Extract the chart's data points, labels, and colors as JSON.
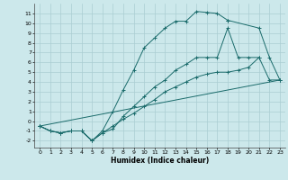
{
  "xlabel": "Humidex (Indice chaleur)",
  "bg_color": "#cce8eb",
  "grid_color": "#aacdd2",
  "line_color": "#1a6b6b",
  "xlim": [
    -0.5,
    23.5
  ],
  "ylim": [
    -2.7,
    12.0
  ],
  "xticks": [
    0,
    1,
    2,
    3,
    4,
    5,
    6,
    7,
    8,
    9,
    10,
    11,
    12,
    13,
    14,
    15,
    16,
    17,
    18,
    19,
    20,
    21,
    22,
    23
  ],
  "yticks": [
    -2,
    -1,
    0,
    1,
    2,
    3,
    4,
    5,
    6,
    7,
    8,
    9,
    10,
    11
  ],
  "lines": [
    {
      "x": [
        0,
        1,
        2,
        3,
        4,
        5,
        6,
        7,
        8,
        9,
        10,
        11,
        12,
        13,
        14,
        15,
        16,
        17,
        18
      ],
      "y": [
        -0.5,
        -1.0,
        -1.2,
        -1.0,
        -1.0,
        -2.0,
        -1.0,
        1.0,
        3.2,
        5.2,
        7.5,
        8.5,
        9.5,
        10.2,
        10.2,
        11.2,
        11.1,
        11.0,
        10.3
      ]
    },
    {
      "x": [
        0,
        1,
        2,
        3,
        4,
        5,
        6,
        7,
        8,
        9,
        10,
        11,
        12,
        13,
        14,
        15,
        16,
        17,
        18,
        19,
        20,
        21
      ],
      "y": [
        -0.5,
        -1.0,
        -1.2,
        -1.0,
        -1.0,
        -2.0,
        -1.2,
        -0.8,
        0.5,
        1.5,
        2.5,
        3.5,
        4.2,
        5.2,
        5.8,
        6.5,
        6.5,
        6.5,
        9.5,
        6.5,
        6.5,
        6.5
      ]
    },
    {
      "x": [
        18,
        21,
        22,
        23
      ],
      "y": [
        10.3,
        9.5,
        6.5,
        4.2
      ]
    },
    {
      "x": [
        0,
        23
      ],
      "y": [
        -0.5,
        4.2
      ]
    },
    {
      "x": [
        0,
        1,
        2,
        3,
        4,
        5,
        6,
        7,
        8,
        9,
        10,
        11,
        12,
        13,
        14,
        15,
        16,
        17,
        18,
        19,
        20,
        21,
        22,
        23
      ],
      "y": [
        -0.5,
        -1.0,
        -1.2,
        -1.0,
        -1.0,
        -2.0,
        -1.2,
        -0.5,
        0.2,
        0.8,
        1.5,
        2.2,
        3.0,
        3.5,
        4.0,
        4.5,
        4.8,
        5.0,
        5.0,
        5.2,
        5.5,
        6.5,
        4.2,
        4.2
      ]
    }
  ]
}
